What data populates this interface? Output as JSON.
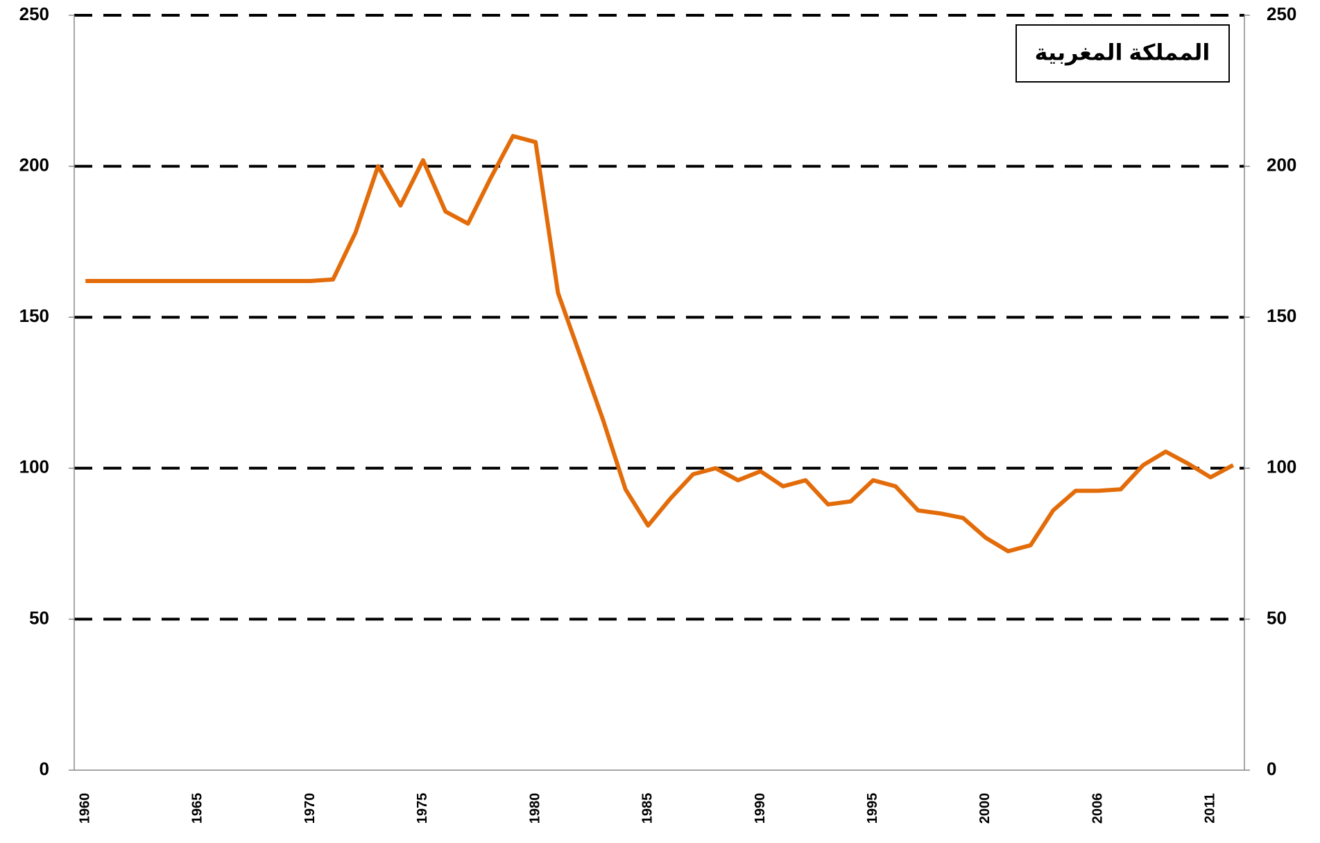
{
  "chart_data": {
    "type": "line",
    "title": "المملكة المغربية",
    "categories": [
      "1960",
      null,
      null,
      null,
      null,
      "1965",
      null,
      null,
      null,
      null,
      "1970",
      null,
      null,
      null,
      null,
      "1975",
      null,
      null,
      null,
      null,
      "1980",
      null,
      null,
      null,
      null,
      "1985",
      null,
      null,
      null,
      null,
      "1990",
      null,
      null,
      null,
      null,
      "1995",
      null,
      null,
      null,
      null,
      "2000",
      null,
      null,
      null,
      null,
      "2006",
      null,
      null,
      null,
      null,
      "2011",
      null
    ],
    "series": [
      {
        "color": "#e36c0a",
        "values": [
          162,
          162,
          162,
          162,
          162,
          162,
          162,
          162,
          162,
          162,
          162,
          162.5,
          178,
          200,
          187,
          202,
          185,
          181,
          196,
          210,
          208,
          158,
          137,
          116,
          93,
          81,
          90,
          98,
          100,
          96,
          99,
          94,
          96,
          88,
          89,
          96,
          94,
          86,
          85,
          83.5,
          77,
          72.5,
          74.5,
          86,
          92.5,
          92.5,
          93,
          101,
          105.5,
          101.5,
          97,
          101
        ]
      }
    ],
    "ylim": [
      0,
      250
    ],
    "yticks": [
      0,
      50,
      100,
      150,
      200,
      250
    ],
    "y2lim": [
      0,
      250
    ],
    "y2ticks": [
      0,
      50,
      100,
      150,
      200,
      250
    ],
    "grid": true
  }
}
